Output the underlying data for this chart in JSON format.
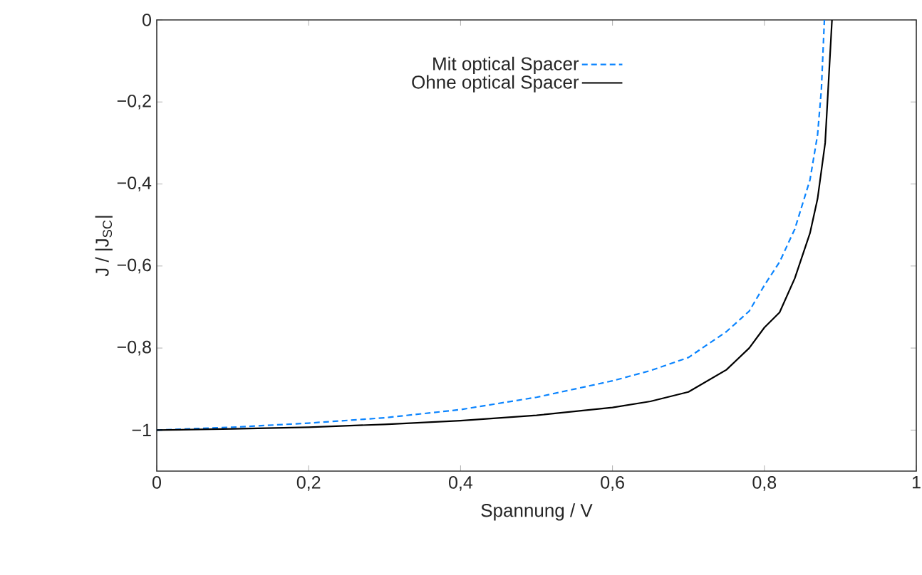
{
  "chart_data": {
    "type": "line",
    "xlabel": "Spannung / V",
    "ylabel": "J / |J$_{SC}$|",
    "xlim": [
      0,
      1
    ],
    "ylim": [
      -1.1,
      0
    ],
    "xticks": [
      0,
      {
        "value": 0.2,
        "label": "0,2"
      },
      {
        "value": 0.4,
        "label": "0,4"
      },
      {
        "value": 0.6,
        "label": "0,6"
      },
      {
        "value": 0.8,
        "label": "0,8"
      },
      1
    ],
    "yticks": [
      {
        "value": -1,
        "label": "−1"
      },
      {
        "value": -0.8,
        "label": "−0,8"
      },
      {
        "value": -0.6,
        "label": "−0,6"
      },
      {
        "value": -0.4,
        "label": "−0,4"
      },
      {
        "value": -0.2,
        "label": "−0,2"
      },
      0
    ],
    "legend": "top left",
    "grid": false,
    "series": [
      {
        "name": "Mit optical Spacer",
        "color": "#0a84ff",
        "line_style": "dashed",
        "x": [
          0,
          0.1,
          0.2,
          0.3,
          0.4,
          0.5,
          0.6,
          0.65,
          0.7,
          0.75,
          0.78,
          0.8,
          0.82,
          0.84,
          0.86,
          0.87,
          0.875,
          0.879
        ],
        "values": [
          -1,
          -0.993,
          -0.983,
          -0.97,
          -0.95,
          -0.92,
          -0.88,
          -0.855,
          -0.823,
          -0.76,
          -0.71,
          -0.647,
          -0.59,
          -0.51,
          -0.39,
          -0.28,
          -0.17,
          0
        ]
      },
      {
        "name": "Ohne optical Spacer",
        "color": "#000000",
        "line_style": "solid",
        "x": [
          0,
          0.1,
          0.2,
          0.3,
          0.4,
          0.5,
          0.6,
          0.65,
          0.7,
          0.75,
          0.78,
          0.8,
          0.82,
          0.84,
          0.86,
          0.87,
          0.88,
          0.889
        ],
        "values": [
          -1,
          -0.997,
          -0.993,
          -0.986,
          -0.977,
          -0.964,
          -0.945,
          -0.93,
          -0.907,
          -0.853,
          -0.8,
          -0.75,
          -0.713,
          -0.63,
          -0.52,
          -0.436,
          -0.3,
          0
        ]
      }
    ]
  }
}
